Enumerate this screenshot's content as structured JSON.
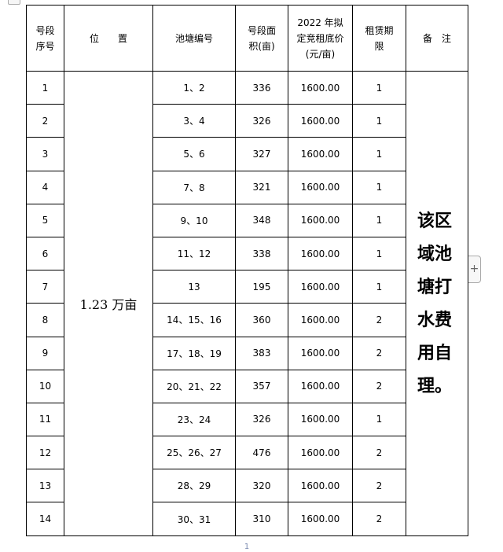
{
  "table": {
    "headers": [
      "号段\n序号",
      "位　　置",
      "池塘编号",
      "号段面\n积(亩)",
      "2022 年拟\n定竞租底价\n(元/亩)",
      "租赁期\n限",
      "备　注"
    ],
    "location": "1.23 万亩",
    "note": "该区域池塘打水费用自理。",
    "rows": [
      {
        "no": "1",
        "ponds": "1、2",
        "area": "336",
        "price": "1600.00",
        "term": "1"
      },
      {
        "no": "2",
        "ponds": "3、4",
        "area": "326",
        "price": "1600.00",
        "term": "1"
      },
      {
        "no": "3",
        "ponds": "5、6",
        "area": "327",
        "price": "1600.00",
        "term": "1"
      },
      {
        "no": "4",
        "ponds": "7、8",
        "area": "321",
        "price": "1600.00",
        "term": "1"
      },
      {
        "no": "5",
        "ponds": "9、10",
        "area": "348",
        "price": "1600.00",
        "term": "1"
      },
      {
        "no": "6",
        "ponds": "11、12",
        "area": "338",
        "price": "1600.00",
        "term": "1"
      },
      {
        "no": "7",
        "ponds": "13",
        "area": "195",
        "price": "1600.00",
        "term": "1"
      },
      {
        "no": "8",
        "ponds": "14、15、16",
        "area": "360",
        "price": "1600.00",
        "term": "2"
      },
      {
        "no": "9",
        "ponds": "17、18、19",
        "area": "383",
        "price": "1600.00",
        "term": "2"
      },
      {
        "no": "10",
        "ponds": "20、21、22",
        "area": "357",
        "price": "1600.00",
        "term": "2"
      },
      {
        "no": "11",
        "ponds": "23、24",
        "area": "326",
        "price": "1600.00",
        "term": "1"
      },
      {
        "no": "12",
        "ponds": "25、26、27",
        "area": "476",
        "price": "1600.00",
        "term": "2"
      },
      {
        "no": "13",
        "ponds": "28、29",
        "area": "320",
        "price": "1600.00",
        "term": "2"
      },
      {
        "no": "14",
        "ponds": "30、31",
        "area": "310",
        "price": "1600.00",
        "term": "2"
      }
    ]
  },
  "add_handle": "+",
  "page_number": "1"
}
